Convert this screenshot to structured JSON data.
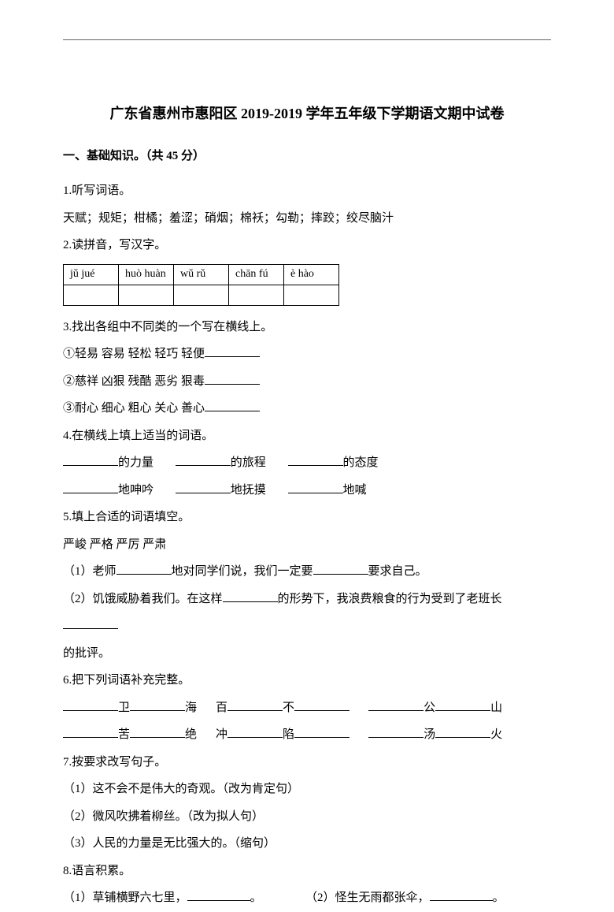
{
  "title": "广东省惠州市惠阳区 2019-2019 学年五年级下学期语文期中试卷",
  "section1_header": "一、基础知识。（共 45 分）",
  "q1": {
    "num": "1.听写词语。",
    "body": "天赋；规矩；柑橘；羞涩；硝烟；棉袄；勾勒；摔跤；绞尽脑汁"
  },
  "q2": {
    "num": "2.读拼音，写汉字。",
    "pinyin": [
      "jǔ jué",
      "huò huàn",
      "wǔ rǔ",
      "chān fú",
      "è hào"
    ]
  },
  "q3": {
    "num": "3.找出各组中不同类的一个写在横线上。",
    "items": [
      "①轻易   容易   轻松   轻巧   轻便",
      "②慈祥   凶狠   残酷   恶劣   狠毒",
      "③耐心   细心   粗心   关心   善心"
    ]
  },
  "q4": {
    "num": "4.在横线上填上适当的词语。",
    "row1": [
      "的力量",
      "的旅程",
      "的态度"
    ],
    "row2": [
      "地呻吟",
      "地抚摸",
      "地喊"
    ]
  },
  "q5": {
    "num": "5.填上合适的词语填空。",
    "choices": "严峻   严格   严厉   严肃",
    "s1a": "（1）老师",
    "s1b": "地对同学们说，我们一定要",
    "s1c": "要求自己。",
    "s2a": "（2）饥饿威胁着我们。在这样",
    "s2b": "的形势下，我浪费粮食的行为受到了老班长",
    "s2c": "的批评。"
  },
  "q6": {
    "num": "6.把下列词语补充完整。",
    "r1": [
      "卫",
      "海",
      "百",
      "不",
      "公",
      "山"
    ],
    "r2": [
      "苦",
      "绝",
      "冲",
      "陷",
      "汤",
      "火"
    ]
  },
  "q7": {
    "num": "7.按要求改写句子。",
    "items": [
      "（1）这不会不是伟大的奇观。（改为肯定句）",
      "（2）微风吹拂着柳丝。（改为拟人句）",
      "（3）人民的力量是无比强大的。（缩句）"
    ]
  },
  "q8": {
    "num": "8.语言积累。",
    "s1a": "（1）草铺横野六七里，",
    "s1b": "。",
    "s2a": "（2）怪生无雨都张伞，",
    "s2b": "。"
  }
}
